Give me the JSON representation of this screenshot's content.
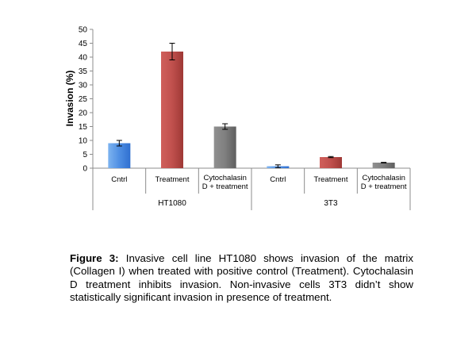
{
  "chart_data": {
    "type": "bar",
    "ylabel": "Invasion (%)",
    "ylim": [
      0,
      50
    ],
    "yticks": [
      0,
      5,
      10,
      15,
      20,
      25,
      30,
      35,
      40,
      45,
      50
    ],
    "groups": [
      {
        "label": "HT1080",
        "bars": [
          {
            "label_lines": [
              "Cntrl"
            ],
            "value": 9,
            "error": 1,
            "color": "#5b9be6"
          },
          {
            "label_lines": [
              "Treatment"
            ],
            "value": 42,
            "error": 3,
            "color": "#c0504d"
          },
          {
            "label_lines": [
              "Cytochalasin",
              "D + treatment"
            ],
            "value": 15,
            "error": 1,
            "color": "#7f7f7f"
          }
        ]
      },
      {
        "label": "3T3",
        "bars": [
          {
            "label_lines": [
              "Cntrl"
            ],
            "value": 0.7,
            "error": 0.5,
            "color": "#5b9be6"
          },
          {
            "label_lines": [
              "Treatment"
            ],
            "value": 4,
            "error": 0.2,
            "color": "#c0504d"
          },
          {
            "label_lines": [
              "Cytochalasin",
              "D + treatment"
            ],
            "value": 2,
            "error": 0.1,
            "color": "#7f7f7f"
          }
        ]
      }
    ]
  },
  "caption": {
    "label": "Figure 3:",
    "text": " Invasive cell line HT1080 shows invasion of the matrix (Collagen I) when treated with positive control (Treatment). Cytochalasin D treatment inhibits invasion. Non-invasive cells 3T3 didn’t show statistically significant invasion in presence of treatment."
  }
}
